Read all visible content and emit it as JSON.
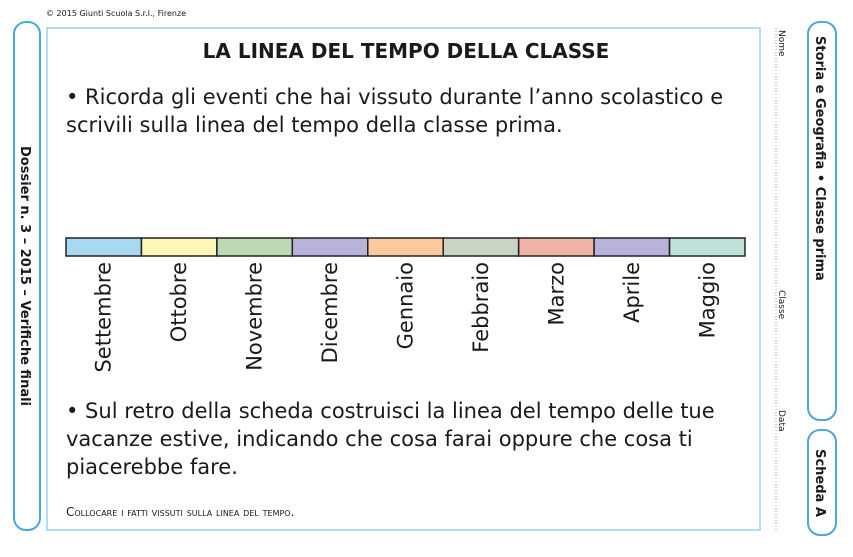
{
  "copyright": "© 2015 Giunti Scuola S.r.l., Firenze",
  "left_tab": "Dossier n. 3 – 2015 – Verifiche finali",
  "title": "LA LINEA DEL TEMPO DELLA CLASSE",
  "instruction_1": [
    "• Ricorda gli eventi che hai vissuto durante l’anno scolastico e",
    "scrivili sulla linea del tempo della classe prima."
  ],
  "timeline": [
    {
      "label": "Settembre",
      "color": "#a9d9f2"
    },
    {
      "label": "Ottobre",
      "color": "#fdf6b5"
    },
    {
      "label": "Novembre",
      "color": "#bcd9b3"
    },
    {
      "label": "Dicembre",
      "color": "#b8b3da"
    },
    {
      "label": "Gennaio",
      "color": "#fcc99c"
    },
    {
      "label": "Febbraio",
      "color": "#c9d5c2"
    },
    {
      "label": "Marzo",
      "color": "#eeb3a4"
    },
    {
      "label": "Aprile",
      "color": "#b8b3da"
    },
    {
      "label": "Maggio",
      "color": "#bce2da"
    }
  ],
  "instruction_2": [
    "• Sul retro della scheda costruisci la linea del tempo delle tue",
    "vacanze estive, indicando che cosa farai oppure che cosa ti",
    "piacerebbe fare."
  ],
  "footer": "Collocare i fatti vissuti sulla linea del tempo.",
  "fields": [
    "Nome",
    "Classe",
    "Data"
  ],
  "right_tab": "Storia e Geografia • Classe prima",
  "sheet_tab": "Scheda A"
}
